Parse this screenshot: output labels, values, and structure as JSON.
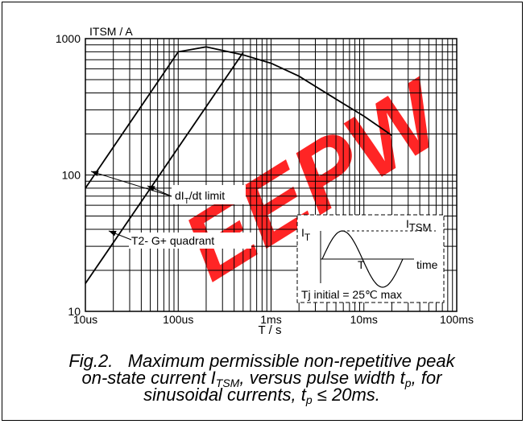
{
  "colors": {
    "ink": "#000000",
    "watermark": "#ff0000"
  },
  "watermark": {
    "text": "EEPW",
    "opacity": 0.85
  },
  "chart_data": {
    "type": "line",
    "ylabel": "ITSM / A",
    "xlabel": "T / s",
    "xscale": "log",
    "yscale": "log",
    "xlim": [
      1e-05,
      0.1
    ],
    "ylim": [
      10,
      1000
    ],
    "grid": true,
    "x_ticks": [
      1e-05,
      0.0001,
      0.001,
      0.01,
      0.1
    ],
    "x_tick_labels": [
      "10us",
      "100us",
      "1ms",
      "10ms",
      "100ms"
    ],
    "y_ticks": [
      10,
      100,
      1000
    ],
    "y_tick_labels": [
      "10",
      "100",
      "1000"
    ],
    "series": [
      {
        "points": [
          [
            1e-05,
            80
          ],
          [
            0.0001,
            800
          ],
          [
            0.0002,
            870
          ],
          [
            0.0005,
            760
          ],
          [
            0.001,
            660
          ],
          [
            0.002,
            530
          ],
          [
            0.005,
            360
          ],
          [
            0.01,
            270
          ],
          [
            0.02,
            195
          ]
        ]
      },
      {
        "points": [
          [
            1e-05,
            16
          ],
          [
            0.0005,
            790
          ]
        ]
      }
    ],
    "annotations": [
      {
        "text_main": "dI",
        "text_sub": "T",
        "text_rest": "/dt limit"
      },
      {
        "text": "T2- G+ quadrant"
      }
    ],
    "inset": {
      "y_label": "I",
      "y_label_sub": "T",
      "peak_label": "I",
      "peak_label_sub": "TSM",
      "width_label": "T",
      "time_label": "time",
      "footnote": "Tj initial = 25℃ max"
    }
  },
  "caption": {
    "fig": "Fig.2.",
    "line1": "Maximum permissible non-repetitive peak",
    "line2_a": "on-state current I",
    "line2_sub": "TSM",
    "line2_b": ", versus pulse width t",
    "line2_sub2": "p",
    "line2_c": ", for",
    "line3_a": "sinusoidal currents, t",
    "line3_sub": "p",
    "line3_b": " ≤ 20ms."
  }
}
